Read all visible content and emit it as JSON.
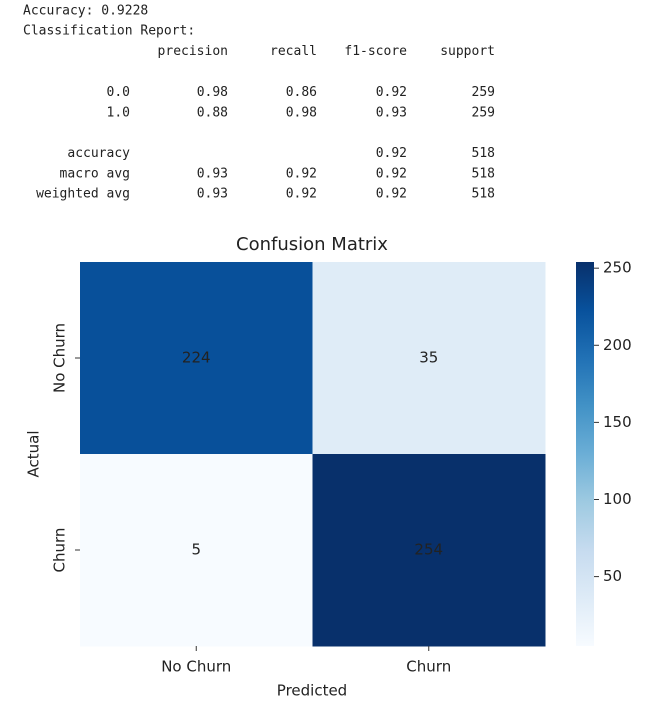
{
  "report": {
    "accuracy_line": "Accuracy: 0.9228",
    "heading": "Classification Report:",
    "columns": [
      "precision",
      "recall",
      "f1-score",
      "support"
    ],
    "rows": [
      [
        "0.0",
        "0.98",
        "0.86",
        "0.92",
        "259"
      ],
      [
        "1.0",
        "0.88",
        "0.98",
        "0.93",
        "259"
      ],
      [
        "accuracy",
        null,
        null,
        "0.92",
        "518"
      ],
      [
        "macro avg",
        "0.93",
        "0.92",
        "0.92",
        "518"
      ],
      [
        "weighted avg",
        "0.93",
        "0.92",
        "0.92",
        "518"
      ]
    ]
  },
  "chart_data": {
    "type": "heatmap",
    "title": "Confusion Matrix",
    "x_label": "Predicted",
    "y_label": "Actual",
    "x_categories": [
      "No Churn",
      "Churn"
    ],
    "y_categories": [
      "No Churn",
      "Churn"
    ],
    "values": [
      [
        224,
        35
      ],
      [
        5,
        254
      ]
    ],
    "clim": [
      5,
      254
    ],
    "cticks": [
      50,
      100,
      150,
      200,
      250
    ],
    "colormap": [
      "#f7fbff",
      "#deebf7",
      "#c6dbef",
      "#9ecae1",
      "#6baed6",
      "#4292c6",
      "#2171b5",
      "#08519c",
      "#08306b"
    ]
  }
}
